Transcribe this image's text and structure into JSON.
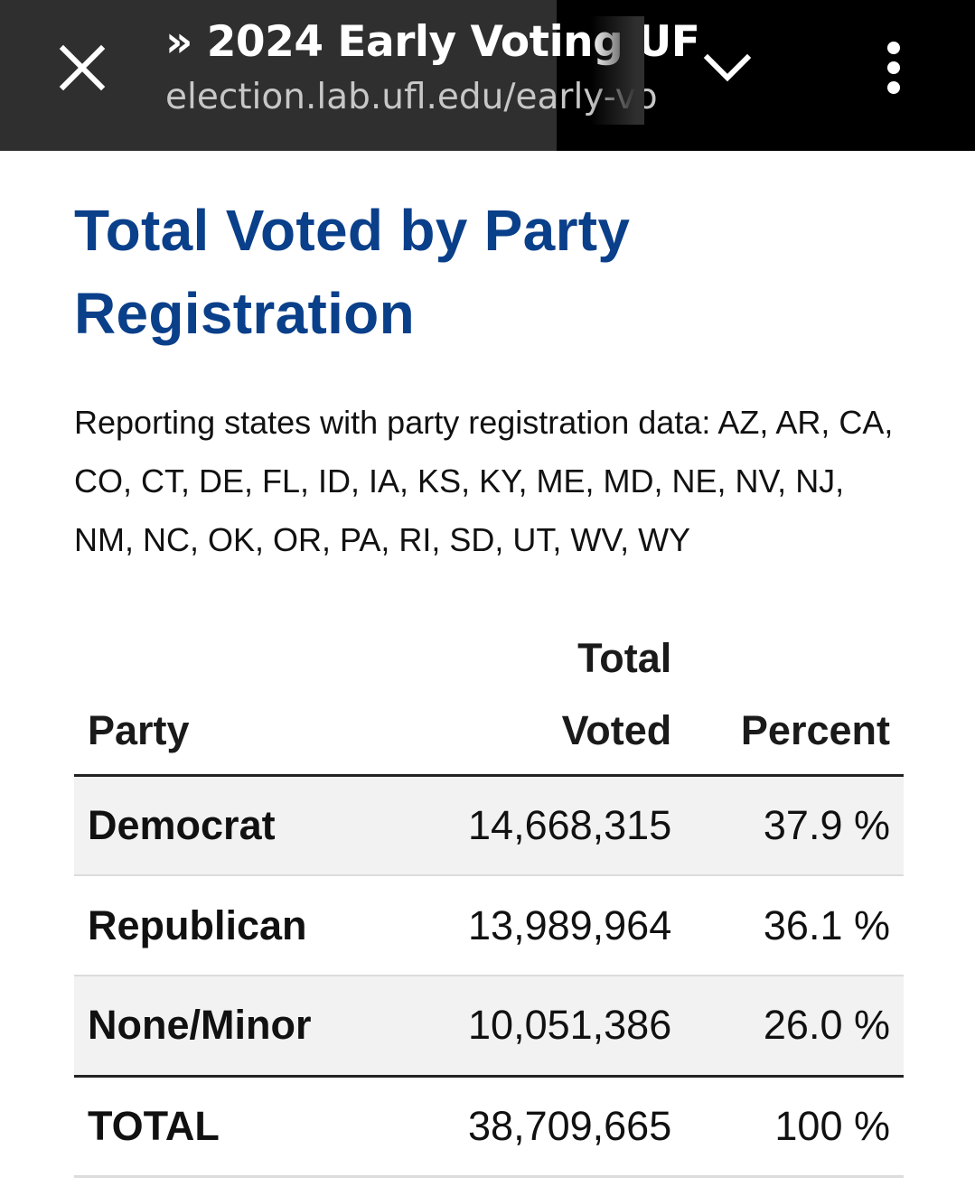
{
  "browser": {
    "title": "» 2024 Early Voting UF",
    "url": "election.lab.ufl.edu/early-vo"
  },
  "article": {
    "heading": "Total Voted by Party Registration",
    "description": "Reporting states with party registration data: AZ, AR, CA, CO, CT, DE, FL, ID, IA, KS, KY, ME, MD, NE, NV, NJ, NM, NC, OK, OR, PA, RI, SD, UT, WV, WY"
  },
  "table": {
    "headers": {
      "party": "Party",
      "total_line1": "Total",
      "total_line2": "Voted",
      "percent": "Percent"
    },
    "rows": [
      {
        "party": "Democrat",
        "total": "14,668,315",
        "percent": "37.9 %"
      },
      {
        "party": "Republican",
        "total": "13,989,964",
        "percent": "36.1 %"
      },
      {
        "party": "None/Minor",
        "total": "10,051,386",
        "percent": "26.0 %"
      }
    ],
    "total_row": {
      "party": "TOTAL",
      "total": "38,709,665",
      "percent": "100 %"
    }
  },
  "colors": {
    "heading": "#0a3f8a",
    "toolbar": "#2f2f2f",
    "row_shade": "#f2f2f2"
  },
  "icons": {
    "close": "close-icon",
    "expand": "chevron-down-icon",
    "menu": "more-vert-icon"
  }
}
